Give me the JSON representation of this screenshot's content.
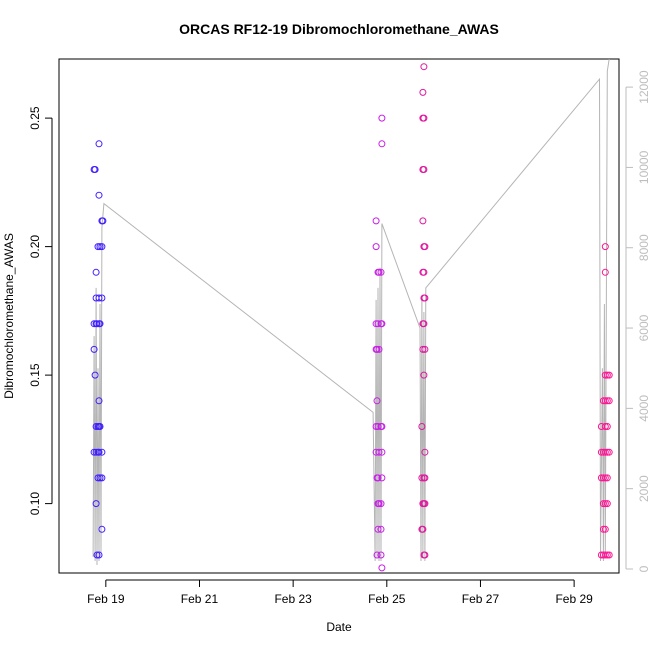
{
  "chart_data": {
    "type": "scatter",
    "title": "ORCAS RF12-19 Dibromochloromethane_AWAS",
    "xlabel": "Date",
    "ylabel": "Dibromochloromethane_AWAS",
    "xlim": [
      "2016-02-18T00:00",
      "2016-02-29T23:00"
    ],
    "ylim": [
      0.073,
      0.273
    ],
    "y_right_lim": [
      -100,
      12700
    ],
    "x_tick_labels": [
      "Feb 19",
      "Feb 21",
      "Feb 23",
      "Feb 25",
      "Feb 27",
      "Feb 29"
    ],
    "x_ticks": [
      "2016-02-19",
      "2016-02-21",
      "2016-02-23",
      "2016-02-25",
      "2016-02-27",
      "2016-02-29"
    ],
    "y_ticks": [
      0.1,
      0.15,
      0.2,
      0.25
    ],
    "y_tick_labels": [
      "0.10",
      "0.15",
      "0.20",
      "0.25"
    ],
    "y_right_ticks": [
      0,
      2000,
      4000,
      6000,
      8000,
      10000,
      12000
    ],
    "y_right_tick_labels": [
      "0",
      "2000",
      "4000",
      "6000",
      "8000",
      "10000",
      "12000"
    ],
    "colors": {
      "flight1": "#3f1fff",
      "flight2": "#c81fe6",
      "flight3": "#e0189e",
      "flight4": "#ff1493",
      "altitude": "#b5b5b5",
      "axis": "#000000",
      "right_axis": "#bdbdbd"
    },
    "series": [
      {
        "color_key": "flight1",
        "points": [
          {
            "x": "2016-02-18T18:00",
            "y": 0.23
          },
          {
            "x": "2016-02-18T18:00",
            "y": 0.17
          },
          {
            "x": "2016-02-18T18:00",
            "y": 0.16
          },
          {
            "x": "2016-02-18T18:00",
            "y": 0.12
          },
          {
            "x": "2016-02-18T18:30",
            "y": 0.23
          },
          {
            "x": "2016-02-18T18:30",
            "y": 0.15
          },
          {
            "x": "2016-02-18T19:00",
            "y": 0.19
          },
          {
            "x": "2016-02-18T19:00",
            "y": 0.18
          },
          {
            "x": "2016-02-18T19:00",
            "y": 0.17
          },
          {
            "x": "2016-02-18T19:00",
            "y": 0.13
          },
          {
            "x": "2016-02-18T19:00",
            "y": 0.12
          },
          {
            "x": "2016-02-18T19:00",
            "y": 0.1
          },
          {
            "x": "2016-02-18T19:30",
            "y": 0.17
          },
          {
            "x": "2016-02-18T19:30",
            "y": 0.08
          },
          {
            "x": "2016-02-18T20:00",
            "y": 0.2
          },
          {
            "x": "2016-02-18T20:00",
            "y": 0.13
          },
          {
            "x": "2016-02-18T20:00",
            "y": 0.12
          },
          {
            "x": "2016-02-18T20:00",
            "y": 0.11
          },
          {
            "x": "2016-02-18T20:30",
            "y": 0.24
          },
          {
            "x": "2016-02-18T20:30",
            "y": 0.22
          },
          {
            "x": "2016-02-18T20:30",
            "y": 0.18
          },
          {
            "x": "2016-02-18T20:30",
            "y": 0.17
          },
          {
            "x": "2016-02-18T20:30",
            "y": 0.14
          },
          {
            "x": "2016-02-18T20:30",
            "y": 0.13
          },
          {
            "x": "2016-02-18T20:30",
            "y": 0.12
          },
          {
            "x": "2016-02-18T20:30",
            "y": 0.08
          },
          {
            "x": "2016-02-18T21:00",
            "y": 0.2
          },
          {
            "x": "2016-02-18T21:00",
            "y": 0.17
          },
          {
            "x": "2016-02-18T21:00",
            "y": 0.13
          },
          {
            "x": "2016-02-18T21:00",
            "y": 0.11
          },
          {
            "x": "2016-02-18T22:00",
            "y": 0.21
          },
          {
            "x": "2016-02-18T22:00",
            "y": 0.2
          },
          {
            "x": "2016-02-18T22:00",
            "y": 0.18
          },
          {
            "x": "2016-02-18T22:00",
            "y": 0.12
          },
          {
            "x": "2016-02-18T22:00",
            "y": 0.11
          },
          {
            "x": "2016-02-18T22:00",
            "y": 0.09
          },
          {
            "x": "2016-02-18T22:30",
            "y": 0.21
          }
        ]
      },
      {
        "color_key": "flight2",
        "points": [
          {
            "x": "2016-02-24T18:30",
            "y": 0.21
          },
          {
            "x": "2016-02-24T18:30",
            "y": 0.2
          },
          {
            "x": "2016-02-24T18:30",
            "y": 0.17
          },
          {
            "x": "2016-02-24T18:30",
            "y": 0.16
          },
          {
            "x": "2016-02-24T18:30",
            "y": 0.13
          },
          {
            "x": "2016-02-24T18:30",
            "y": 0.12
          },
          {
            "x": "2016-02-24T19:00",
            "y": 0.16
          },
          {
            "x": "2016-02-24T19:00",
            "y": 0.14
          },
          {
            "x": "2016-02-24T19:00",
            "y": 0.11
          },
          {
            "x": "2016-02-24T19:00",
            "y": 0.08
          },
          {
            "x": "2016-02-24T19:30",
            "y": 0.19
          },
          {
            "x": "2016-02-24T19:30",
            "y": 0.17
          },
          {
            "x": "2016-02-24T19:30",
            "y": 0.13
          },
          {
            "x": "2016-02-24T19:30",
            "y": 0.11
          },
          {
            "x": "2016-02-24T19:30",
            "y": 0.1
          },
          {
            "x": "2016-02-24T19:30",
            "y": 0.09
          },
          {
            "x": "2016-02-24T20:00",
            "y": 0.19
          },
          {
            "x": "2016-02-24T20:00",
            "y": 0.16
          },
          {
            "x": "2016-02-24T20:00",
            "y": 0.12
          },
          {
            "x": "2016-02-24T20:00",
            "y": 0.1
          },
          {
            "x": "2016-02-24T21:00",
            "y": 0.19
          },
          {
            "x": "2016-02-24T21:00",
            "y": 0.17
          },
          {
            "x": "2016-02-24T21:00",
            "y": 0.13
          },
          {
            "x": "2016-02-24T21:00",
            "y": 0.1
          },
          {
            "x": "2016-02-24T21:00",
            "y": 0.09
          },
          {
            "x": "2016-02-24T21:00",
            "y": 0.08
          },
          {
            "x": "2016-02-24T21:30",
            "y": 0.25
          },
          {
            "x": "2016-02-24T21:30",
            "y": 0.24
          },
          {
            "x": "2016-02-24T21:30",
            "y": 0.17
          },
          {
            "x": "2016-02-24T21:30",
            "y": 0.13
          },
          {
            "x": "2016-02-24T21:30",
            "y": 0.12
          },
          {
            "x": "2016-02-24T21:30",
            "y": 0.11
          },
          {
            "x": "2016-02-24T21:30",
            "y": 0.075
          }
        ]
      },
      {
        "color_key": "flight3",
        "points": [
          {
            "x": "2016-02-25T18:00",
            "y": 0.13
          },
          {
            "x": "2016-02-25T18:00",
            "y": 0.11
          },
          {
            "x": "2016-02-25T18:00",
            "y": 0.09
          },
          {
            "x": "2016-02-25T18:30",
            "y": 0.26
          },
          {
            "x": "2016-02-25T18:30",
            "y": 0.25
          },
          {
            "x": "2016-02-25T18:30",
            "y": 0.23
          },
          {
            "x": "2016-02-25T18:30",
            "y": 0.21
          },
          {
            "x": "2016-02-25T18:30",
            "y": 0.19
          },
          {
            "x": "2016-02-25T18:30",
            "y": 0.17
          },
          {
            "x": "2016-02-25T18:30",
            "y": 0.16
          },
          {
            "x": "2016-02-25T18:30",
            "y": 0.1
          },
          {
            "x": "2016-02-25T18:30",
            "y": 0.09
          },
          {
            "x": "2016-02-25T19:00",
            "y": 0.27
          },
          {
            "x": "2016-02-25T19:00",
            "y": 0.25
          },
          {
            "x": "2016-02-25T19:00",
            "y": 0.23
          },
          {
            "x": "2016-02-25T19:00",
            "y": 0.2
          },
          {
            "x": "2016-02-25T19:00",
            "y": 0.19
          },
          {
            "x": "2016-02-25T19:00",
            "y": 0.18
          },
          {
            "x": "2016-02-25T19:00",
            "y": 0.17
          },
          {
            "x": "2016-02-25T19:00",
            "y": 0.15
          },
          {
            "x": "2016-02-25T19:00",
            "y": 0.11
          },
          {
            "x": "2016-02-25T19:00",
            "y": 0.1
          },
          {
            "x": "2016-02-25T19:00",
            "y": 0.08
          },
          {
            "x": "2016-02-25T19:30",
            "y": 0.2
          },
          {
            "x": "2016-02-25T19:30",
            "y": 0.18
          },
          {
            "x": "2016-02-25T19:30",
            "y": 0.16
          },
          {
            "x": "2016-02-25T19:30",
            "y": 0.12
          },
          {
            "x": "2016-02-25T19:30",
            "y": 0.11
          },
          {
            "x": "2016-02-25T19:30",
            "y": 0.1
          },
          {
            "x": "2016-02-25T19:30",
            "y": 0.08
          }
        ]
      },
      {
        "color_key": "flight4",
        "points": [
          {
            "x": "2016-02-29T14:00",
            "y": 0.13
          },
          {
            "x": "2016-02-29T14:00",
            "y": 0.12
          },
          {
            "x": "2016-02-29T14:00",
            "y": 0.11
          },
          {
            "x": "2016-02-29T14:00",
            "y": 0.08
          },
          {
            "x": "2016-02-29T15:00",
            "y": 0.14
          },
          {
            "x": "2016-02-29T15:00",
            "y": 0.12
          },
          {
            "x": "2016-02-29T15:00",
            "y": 0.11
          },
          {
            "x": "2016-02-29T15:00",
            "y": 0.1
          },
          {
            "x": "2016-02-29T15:00",
            "y": 0.09
          },
          {
            "x": "2016-02-29T15:00",
            "y": 0.08
          },
          {
            "x": "2016-02-29T16:00",
            "y": 0.2
          },
          {
            "x": "2016-02-29T16:00",
            "y": 0.19
          },
          {
            "x": "2016-02-29T16:00",
            "y": 0.15
          },
          {
            "x": "2016-02-29T16:00",
            "y": 0.14
          },
          {
            "x": "2016-02-29T16:00",
            "y": 0.13
          },
          {
            "x": "2016-02-29T16:00",
            "y": 0.12
          },
          {
            "x": "2016-02-29T16:00",
            "y": 0.11
          },
          {
            "x": "2016-02-29T16:00",
            "y": 0.1
          },
          {
            "x": "2016-02-29T16:00",
            "y": 0.09
          },
          {
            "x": "2016-02-29T16:00",
            "y": 0.08
          },
          {
            "x": "2016-02-29T17:00",
            "y": 0.15
          },
          {
            "x": "2016-02-29T17:00",
            "y": 0.14
          },
          {
            "x": "2016-02-29T17:00",
            "y": 0.13
          },
          {
            "x": "2016-02-29T17:00",
            "y": 0.12
          },
          {
            "x": "2016-02-29T17:00",
            "y": 0.11
          },
          {
            "x": "2016-02-29T17:00",
            "y": 0.1
          },
          {
            "x": "2016-02-29T17:00",
            "y": 0.08
          },
          {
            "x": "2016-02-29T18:00",
            "y": 0.15
          },
          {
            "x": "2016-02-29T18:00",
            "y": 0.14
          },
          {
            "x": "2016-02-29T18:00",
            "y": 0.12
          },
          {
            "x": "2016-02-29T18:00",
            "y": 0.08
          }
        ]
      }
    ],
    "altitude_line": [
      {
        "x": "2016-02-18T17:30",
        "y": 300
      },
      {
        "x": "2016-02-18T18:00",
        "y": 5800
      },
      {
        "x": "2016-02-18T18:30",
        "y": 200
      },
      {
        "x": "2016-02-18T19:00",
        "y": 7000
      },
      {
        "x": "2016-02-18T19:30",
        "y": 100
      },
      {
        "x": "2016-02-18T20:00",
        "y": 5000
      },
      {
        "x": "2016-02-18T20:30",
        "y": 200
      },
      {
        "x": "2016-02-18T21:00",
        "y": 6600
      },
      {
        "x": "2016-02-18T21:30",
        "y": 400
      },
      {
        "x": "2016-02-18T22:00",
        "y": 8500
      },
      {
        "x": "2016-02-18T23:00",
        "y": 9100
      },
      {
        "x": "2016-02-24T17:00",
        "y": 3900
      },
      {
        "x": "2016-02-24T18:00",
        "y": 200
      },
      {
        "x": "2016-02-24T18:30",
        "y": 6700
      },
      {
        "x": "2016-02-24T19:00",
        "y": 300
      },
      {
        "x": "2016-02-24T19:30",
        "y": 7000
      },
      {
        "x": "2016-02-24T20:00",
        "y": 200
      },
      {
        "x": "2016-02-24T20:30",
        "y": 7500
      },
      {
        "x": "2016-02-24T21:00",
        "y": 200
      },
      {
        "x": "2016-02-24T21:30",
        "y": 8600
      },
      {
        "x": "2016-02-25T17:00",
        "y": 6000
      },
      {
        "x": "2016-02-25T17:30",
        "y": 200
      },
      {
        "x": "2016-02-25T18:00",
        "y": 6800
      },
      {
        "x": "2016-02-25T18:30",
        "y": 300
      },
      {
        "x": "2016-02-25T19:00",
        "y": 6400
      },
      {
        "x": "2016-02-25T19:30",
        "y": 200
      },
      {
        "x": "2016-02-25T20:00",
        "y": 7000
      },
      {
        "x": "2016-02-29T13:00",
        "y": 12200
      },
      {
        "x": "2016-02-29T13:30",
        "y": 200
      },
      {
        "x": "2016-02-29T14:30",
        "y": 5000
      },
      {
        "x": "2016-02-29T15:00",
        "y": 200
      },
      {
        "x": "2016-02-29T15:30",
        "y": 6600
      },
      {
        "x": "2016-02-29T16:00",
        "y": 300
      },
      {
        "x": "2016-02-29T17:00",
        "y": 12400
      },
      {
        "x": "2016-02-29T18:00",
        "y": 12700
      }
    ],
    "grid": false,
    "legend": "none"
  }
}
